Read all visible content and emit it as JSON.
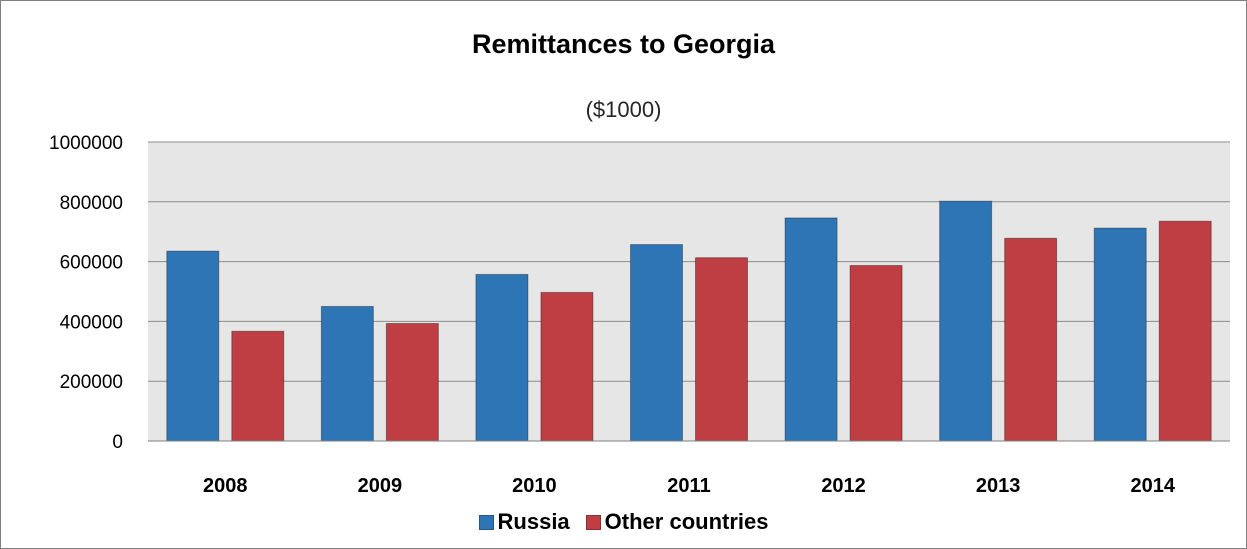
{
  "chart_data": {
    "type": "bar",
    "title": "Remittances to Georgia",
    "subtitle": "($1000)",
    "xlabel": "",
    "ylabel": "",
    "categories": [
      "2008",
      "2009",
      "2010",
      "2011",
      "2012",
      "2013",
      "2014"
    ],
    "series": [
      {
        "name": "Russia",
        "color": "#2e75b6",
        "values": [
          635000,
          450000,
          557000,
          657000,
          746000,
          802000,
          712000
        ]
      },
      {
        "name": "Other countries",
        "color": "#be3e43",
        "values": [
          367000,
          393000,
          497000,
          613000,
          587000,
          678000,
          735000
        ]
      }
    ],
    "ylim": [
      0,
      1000000
    ],
    "yticks": [
      "0",
      "200000",
      "400000",
      "600000",
      "800000",
      "1000000"
    ],
    "grid": true,
    "plot_background": "#e6e6e6",
    "legend_position": "bottom"
  }
}
